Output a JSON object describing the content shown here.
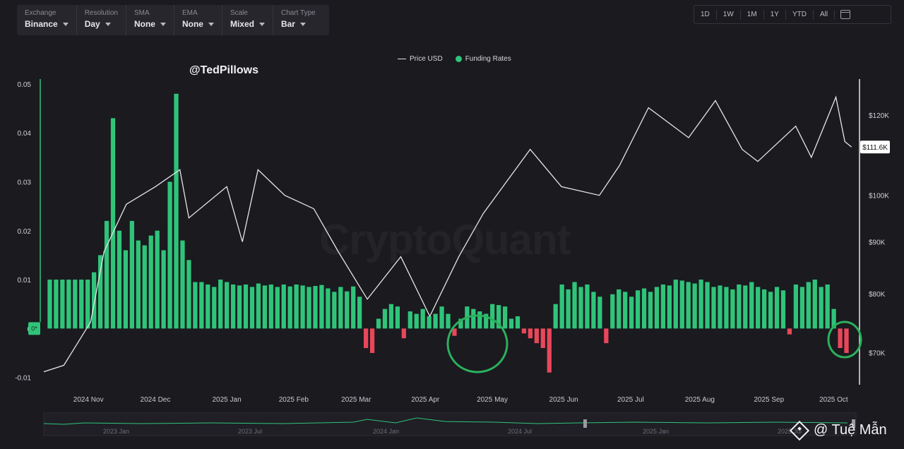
{
  "toolbar": {
    "exchange": {
      "label": "Exchange",
      "value": "Binance"
    },
    "resolution": {
      "label": "Resolution",
      "value": "Day"
    },
    "sma": {
      "label": "SMA",
      "value": "None"
    },
    "ema": {
      "label": "EMA",
      "value": "None"
    },
    "scale": {
      "label": "Scale",
      "value": "Mixed"
    },
    "chart_type": {
      "label": "Chart Type",
      "value": "Bar"
    }
  },
  "ranges": [
    "1D",
    "1W",
    "1M",
    "1Y",
    "YTD",
    "All"
  ],
  "handle": "@TedPillows",
  "watermark": "CryptoQuant",
  "credit": "@ Tuệ Mẫn",
  "colors": {
    "positive": "#2fc47a",
    "negative": "#e8475a",
    "price": "#e6e6ea",
    "highlight": "#2bb05c"
  },
  "chart_data": {
    "type": "bar",
    "title": "",
    "legend": [
      "Price USD",
      "Funding Rates"
    ],
    "legend_position": "top-center",
    "x_ticks": [
      "2024 Nov",
      "2024 Dec",
      "2025 Jan",
      "2025 Feb",
      "2025 Mar",
      "2025 Apr",
      "2025 May",
      "2025 Jun",
      "2025 Jul",
      "2025 Aug",
      "2025 Sep",
      "2025 Oct"
    ],
    "left_ticks": [
      "0.05",
      "0.04",
      "0.03",
      "0.02",
      "0.01",
      "0",
      "-0.01"
    ],
    "left_ylim": [
      -0.0115,
      0.051
    ],
    "right_ticks": [
      "$120K",
      "$100K",
      "$90K",
      "$80K",
      "$70K"
    ],
    "right_scale": "log",
    "last_price_label": "$111.6K",
    "grid": false,
    "series": [
      {
        "name": "Funding Rates",
        "type": "bar",
        "x_range": [
          "2024-10-16",
          "2025-10-13"
        ],
        "values_approx": [
          0.01,
          0.01,
          0.01,
          0.01,
          0.01,
          0.01,
          0.01,
          0.0115,
          0.015,
          0.022,
          0.043,
          0.02,
          0.016,
          0.022,
          0.018,
          0.017,
          0.019,
          0.02,
          0.016,
          0.03,
          0.048,
          0.018,
          0.014,
          0.0095,
          0.0095,
          0.009,
          0.0085,
          0.01,
          0.0095,
          0.009,
          0.0088,
          0.009,
          0.0085,
          0.0092,
          0.0088,
          0.009,
          0.0085,
          0.009,
          0.0086,
          0.009,
          0.0088,
          0.0085,
          0.0087,
          0.0089,
          0.0082,
          0.0075,
          0.0085,
          0.0076,
          0.0086,
          0.0065,
          -0.004,
          -0.005,
          0.002,
          0.004,
          0.005,
          0.0045,
          -0.002,
          0.0035,
          0.003,
          0.004,
          0.0025,
          0.003,
          0.0045,
          0.003,
          -0.0015,
          0.002,
          0.0045,
          0.004,
          0.0035,
          0.003,
          0.005,
          0.0048,
          0.0045,
          0.002,
          0.0025,
          -0.001,
          -0.002,
          -0.003,
          -0.004,
          -0.009,
          0.005,
          0.009,
          0.008,
          0.0095,
          0.0085,
          0.009,
          0.0075,
          0.0065,
          -0.003,
          0.007,
          0.008,
          0.0075,
          0.0065,
          0.0078,
          0.0082,
          0.0075,
          0.0085,
          0.009,
          0.0088,
          0.01,
          0.0098,
          0.0095,
          0.0092,
          0.01,
          0.0095,
          0.0085,
          0.0088,
          0.0085,
          0.008,
          0.009,
          0.0088,
          0.0095,
          0.0085,
          0.008,
          0.0075,
          0.0085,
          0.0078,
          -0.0012,
          0.009,
          0.0085,
          0.0095,
          0.01,
          0.0085,
          0.009,
          0.004,
          -0.004,
          -0.005
        ],
        "highlighted_negative_periods": [
          "2025-04-25 to 2025-05-02",
          "2025-10-10 to 2025-10-13"
        ]
      },
      {
        "name": "Price USD",
        "type": "line",
        "points_approx": [
          [
            "2024-10-16",
            67000
          ],
          [
            "2024-10-25",
            68000
          ],
          [
            "2024-11-06",
            75000
          ],
          [
            "2024-11-12",
            88000
          ],
          [
            "2024-11-22",
            98000
          ],
          [
            "2024-12-05",
            102000
          ],
          [
            "2024-12-16",
            106000
          ],
          [
            "2024-12-20",
            95000
          ],
          [
            "2025-01-06",
            102000
          ],
          [
            "2025-01-13",
            90000
          ],
          [
            "2025-01-20",
            106000
          ],
          [
            "2025-02-01",
            100000
          ],
          [
            "2025-02-14",
            97000
          ],
          [
            "2025-02-25",
            88000
          ],
          [
            "2025-03-10",
            79000
          ],
          [
            "2025-03-25",
            87000
          ],
          [
            "2025-04-07",
            76000
          ],
          [
            "2025-04-20",
            87000
          ],
          [
            "2025-05-01",
            96000
          ],
          [
            "2025-05-22",
            111000
          ],
          [
            "2025-06-05",
            102000
          ],
          [
            "2025-06-22",
            100000
          ],
          [
            "2025-07-01",
            107000
          ],
          [
            "2025-07-14",
            122000
          ],
          [
            "2025-08-01",
            114000
          ],
          [
            "2025-08-13",
            124000
          ],
          [
            "2025-08-25",
            111000
          ],
          [
            "2025-09-01",
            108000
          ],
          [
            "2025-09-18",
            117000
          ],
          [
            "2025-09-25",
            109000
          ],
          [
            "2025-10-06",
            125000
          ],
          [
            "2025-10-10",
            113000
          ],
          [
            "2025-10-13",
            111600
          ]
        ]
      }
    ],
    "annotations": [
      "circle around 2025 May negative funding",
      "circle around 2025 Oct negative funding"
    ]
  },
  "navigator": {
    "ticks": [
      "2023 Jan",
      "2023 Jul",
      "2024 Jan",
      "2024 Jul",
      "2025 Jan",
      "2025 Jul"
    ]
  }
}
